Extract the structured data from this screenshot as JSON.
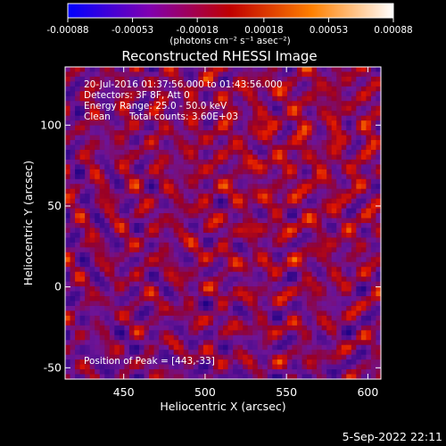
{
  "chart_data": {
    "type": "heatmap",
    "title": "Reconstructed RHESSI Image",
    "xlabel": "Heliocentric X (arcsec)",
    "ylabel": "Heliocentric Y (arcsec)",
    "xlim": [
      414,
      608
    ],
    "ylim": [
      -57,
      136
    ],
    "x_ticks": [
      450,
      500,
      550,
      600
    ],
    "y_ticks": [
      -50,
      0,
      50,
      100
    ],
    "colorbar": {
      "ticks": [
        "-0.00088",
        "-0.00053",
        "-0.00018",
        "0.00018",
        "0.00053",
        "0.00088"
      ],
      "range": [
        -0.00088,
        0.00088
      ],
      "unit_label": "(photons cm⁻² s⁻¹ asec⁻²)"
    },
    "annotations": [
      "20-Jul-2016 01:37:56.000 to 01:43:56.000",
      "Detectors: 3F 8F, Att 0",
      "Energy Range: 25.0 - 50.0 keV",
      "Clean",
      "Total counts: 3.60E+03"
    ],
    "peak_label": "Position of Peak = [443,-33]"
  },
  "footer": {
    "date": "5-Sep-2022 22:11"
  }
}
